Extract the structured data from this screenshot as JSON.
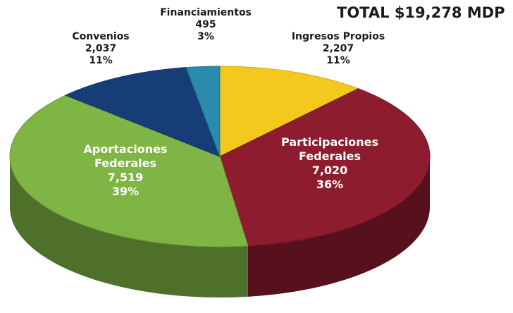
{
  "chart_data": {
    "type": "pie3d",
    "title": "TOTAL $19,278 MDP",
    "categories": [
      "Ingresos Propios",
      "Participaciones Federales",
      "Aportaciones Federales",
      "Convenios",
      "Financiamientos"
    ],
    "values": [
      2207,
      7020,
      7519,
      2037,
      495
    ],
    "value_labels": [
      "2,207",
      "7,020",
      "7,519",
      "2,037",
      "495"
    ],
    "percentages": [
      11,
      36,
      39,
      11,
      3
    ],
    "percentage_labels": [
      "11%",
      "36%",
      "39%",
      "11%",
      "3%"
    ],
    "colors": [
      "#f4c81c",
      "#8c1c2e",
      "#7fb545",
      "#173d78",
      "#2a8bab"
    ]
  }
}
